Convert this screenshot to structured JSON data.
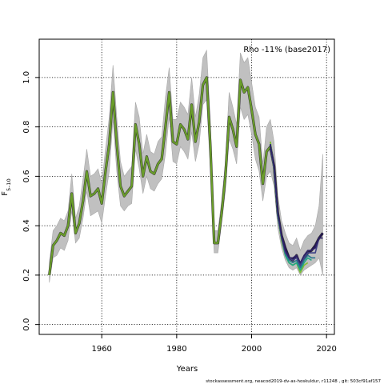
{
  "chart_data": {
    "type": "line",
    "annotation": "Rho -11% (base2017)",
    "xlabel": "Years",
    "ylabel_main": "F",
    "ylabel_sub": "5–10",
    "footer": "stockassessment.org, neacod2019-dv-as-hoskuldur, r11248 , git: 503cf91af157",
    "xlim": [
      1943.3,
      2022.1
    ],
    "ylim": [
      -0.04,
      1.155
    ],
    "xticks": [
      1960,
      1980,
      2000,
      2020
    ],
    "yticks": [
      0.0,
      0.2,
      0.4,
      0.6,
      0.8,
      1.0
    ],
    "ytick_labels": [
      "0.0",
      "0.2",
      "0.4",
      "0.6",
      "0.8",
      "1.0"
    ],
    "grid": "dotted at ticks",
    "colors": {
      "band": "#c0c0c0",
      "band_edge": "#a8a8a8",
      "base": "#333333",
      "retro": [
        "#6a9e2a",
        "#7fbf34",
        "#22a884",
        "#2a788e",
        "#414487",
        "#2e2266",
        "#221552"
      ]
    },
    "years": [
      1946,
      1947,
      1948,
      1949,
      1950,
      1951,
      1952,
      1953,
      1954,
      1955,
      1956,
      1957,
      1958,
      1959,
      1960,
      1961,
      1962,
      1963,
      1964,
      1965,
      1966,
      1967,
      1968,
      1969,
      1970,
      1971,
      1972,
      1973,
      1974,
      1975,
      1976,
      1977,
      1978,
      1979,
      1980,
      1981,
      1982,
      1983,
      1984,
      1985,
      1986,
      1987,
      1988,
      1989,
      1990,
      1991,
      1992,
      1993,
      1994,
      1995,
      1996,
      1997,
      1998,
      1999,
      2000,
      2001,
      2002,
      2003,
      2004,
      2005,
      2006,
      2007,
      2008,
      2009,
      2010,
      2011,
      2012,
      2013,
      2014,
      2015,
      2016,
      2017,
      2018,
      2019
    ],
    "base_F": [
      0.2,
      0.32,
      0.34,
      0.37,
      0.36,
      0.4,
      0.53,
      0.37,
      0.41,
      0.5,
      0.62,
      0.52,
      0.53,
      0.55,
      0.49,
      0.62,
      0.73,
      0.94,
      0.73,
      0.56,
      0.52,
      0.54,
      0.56,
      0.81,
      0.73,
      0.6,
      0.68,
      0.62,
      0.61,
      0.65,
      0.67,
      0.8,
      0.94,
      0.74,
      0.73,
      0.81,
      0.79,
      0.75,
      0.89,
      0.74,
      0.82,
      0.97,
      1.0,
      0.72,
      0.33,
      0.33,
      0.45,
      0.6,
      0.84,
      0.79,
      0.72,
      0.99,
      0.94,
      0.96,
      0.87,
      0.77,
      0.73,
      0.57,
      0.7,
      0.72,
      0.64,
      0.45,
      0.36,
      0.31,
      0.27,
      0.26,
      0.28,
      0.24,
      0.27,
      0.29,
      0.3,
      0.32,
      0.35,
      0.37
    ],
    "band_lower": [
      0.17,
      0.27,
      0.28,
      0.31,
      0.3,
      0.34,
      0.46,
      0.33,
      0.35,
      0.43,
      0.54,
      0.44,
      0.45,
      0.46,
      0.41,
      0.52,
      0.62,
      0.83,
      0.62,
      0.48,
      0.46,
      0.48,
      0.49,
      0.71,
      0.63,
      0.53,
      0.6,
      0.55,
      0.54,
      0.57,
      0.59,
      0.69,
      0.84,
      0.66,
      0.65,
      0.72,
      0.7,
      0.67,
      0.78,
      0.66,
      0.73,
      0.89,
      0.91,
      0.62,
      0.29,
      0.29,
      0.41,
      0.54,
      0.75,
      0.71,
      0.65,
      0.88,
      0.83,
      0.85,
      0.77,
      0.67,
      0.62,
      0.5,
      0.6,
      0.62,
      0.56,
      0.39,
      0.31,
      0.26,
      0.23,
      0.22,
      0.23,
      0.2,
      0.22,
      0.23,
      0.24,
      0.25,
      0.27,
      0.2
    ],
    "band_upper": [
      0.25,
      0.38,
      0.4,
      0.43,
      0.42,
      0.46,
      0.61,
      0.43,
      0.48,
      0.59,
      0.71,
      0.6,
      0.61,
      0.63,
      0.57,
      0.71,
      0.84,
      1.05,
      0.84,
      0.66,
      0.6,
      0.62,
      0.64,
      0.9,
      0.84,
      0.69,
      0.77,
      0.7,
      0.69,
      0.74,
      0.76,
      0.92,
      1.04,
      0.83,
      0.83,
      0.9,
      0.88,
      0.85,
      1.0,
      0.84,
      0.93,
      1.08,
      1.11,
      0.82,
      0.38,
      0.38,
      0.5,
      0.66,
      0.94,
      0.88,
      0.81,
      1.1,
      1.06,
      1.08,
      0.98,
      0.88,
      0.84,
      0.65,
      0.8,
      0.83,
      0.74,
      0.52,
      0.42,
      0.37,
      0.33,
      0.32,
      0.35,
      0.3,
      0.34,
      0.36,
      0.37,
      0.4,
      0.48,
      0.69
    ],
    "retro_peels": [
      {
        "start": 2005,
        "values": [
          0.74,
          0.62,
          0.44,
          0.34,
          0.28,
          0.25,
          0.24,
          0.25,
          0.21,
          0.24
        ]
      },
      {
        "start": 2005,
        "values": [
          0.74,
          0.63,
          0.44,
          0.34,
          0.28,
          0.25,
          0.24,
          0.25,
          0.21,
          0.24,
          0.25
        ]
      },
      {
        "start": 2005,
        "values": [
          0.73,
          0.63,
          0.44,
          0.35,
          0.28,
          0.25,
          0.24,
          0.25,
          0.22,
          0.25,
          0.27,
          0.26
        ]
      },
      {
        "start": 2005,
        "values": [
          0.73,
          0.63,
          0.44,
          0.35,
          0.29,
          0.26,
          0.25,
          0.26,
          0.23,
          0.26,
          0.28,
          0.27,
          0.27
        ]
      },
      {
        "start": 2005,
        "values": [
          0.73,
          0.63,
          0.45,
          0.35,
          0.29,
          0.27,
          0.26,
          0.27,
          0.24,
          0.27,
          0.29,
          0.29,
          0.29,
          0.35
        ]
      },
      {
        "start": 2005,
        "values": [
          0.73,
          0.64,
          0.45,
          0.36,
          0.3,
          0.27,
          0.27,
          0.28,
          0.25,
          0.28,
          0.3,
          0.3,
          0.31,
          0.35,
          0.35
        ]
      }
    ]
  }
}
